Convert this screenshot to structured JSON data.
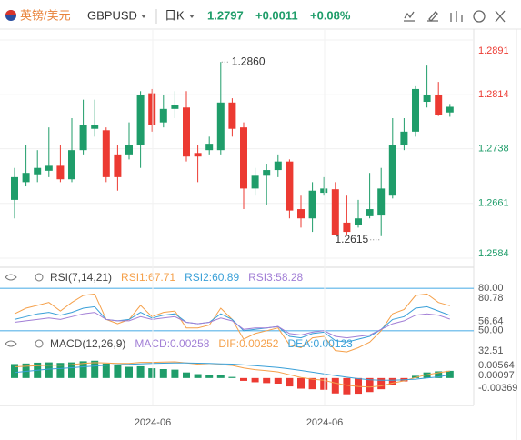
{
  "header": {
    "pair": "英镑/美元",
    "symbol": "GBPUSD",
    "period": "日K",
    "price": "1.2797",
    "change": "+0.0011",
    "change_pct": "+0.08%"
  },
  "x_labels": [
    "2024-06",
    "2024-06"
  ],
  "chart_data": [
    {
      "type": "candlestick",
      "up_color": "#1f9d6a",
      "down_color": "#ec3a32",
      "ylim": [
        1.2584,
        1.2891
      ],
      "yticks": [
        1.2891,
        1.2814,
        1.2738,
        1.2661,
        1.2584
      ],
      "grid": true,
      "annotations": [
        {
          "text": "1.2860",
          "at": "high"
        },
        {
          "text": "1.2615",
          "at": "low"
        }
      ],
      "open": [
        1.2666,
        1.2691,
        1.2702,
        1.2707,
        1.2714,
        1.2695,
        1.2736,
        1.2766,
        1.2764,
        1.273,
        1.273,
        1.2743,
        1.2816,
        1.2775,
        1.2794,
        1.2796,
        1.2732,
        1.2736,
        1.2736,
        1.2803,
        1.2768,
        1.2682,
        1.27,
        1.2708,
        1.272,
        1.2653,
        1.264,
        1.2676,
        1.2681,
        1.2634,
        1.2631,
        1.2643,
        1.2644,
        1.2672,
        1.2743,
        1.2762,
        1.2804,
        1.2814,
        1.2789
      ],
      "high": [
        1.2711,
        1.2743,
        1.2736,
        1.2768,
        1.2743,
        1.2781,
        1.2807,
        1.2807,
        1.2768,
        1.2743,
        1.2775,
        1.2819,
        1.2822,
        1.2813,
        1.2819,
        1.2819,
        1.2743,
        1.2755,
        1.286,
        1.2809,
        1.2775,
        1.2711,
        1.2717,
        1.273,
        1.2723,
        1.2672,
        1.2691,
        1.2698,
        1.2691,
        1.2672,
        1.2666,
        1.2704,
        1.2711,
        1.2781,
        1.2781,
        1.2826,
        1.2855,
        1.2832,
        1.2801
      ],
      "low": [
        1.264,
        1.2685,
        1.2691,
        1.2698,
        1.2691,
        1.2691,
        1.273,
        1.2755,
        1.2691,
        1.2679,
        1.2723,
        1.2711,
        1.2762,
        1.2768,
        1.2781,
        1.272,
        1.2691,
        1.273,
        1.273,
        1.2755,
        1.2653,
        1.2672,
        1.2659,
        1.2698,
        1.264,
        1.2627,
        1.2621,
        1.2672,
        1.2616,
        1.2617,
        1.2627,
        1.264,
        1.2615,
        1.2668,
        1.2736,
        1.2755,
        1.2796,
        1.2784,
        1.2783
      ],
      "close": [
        1.2698,
        1.2704,
        1.2711,
        1.2714,
        1.2695,
        1.2736,
        1.2771,
        1.2771,
        1.2698,
        1.2698,
        1.2743,
        1.2813,
        1.2772,
        1.2794,
        1.28,
        1.2727,
        1.2727,
        1.2745,
        1.2803,
        1.2766,
        1.2682,
        1.27,
        1.2708,
        1.272,
        1.2651,
        1.264,
        1.2679,
        1.2682,
        1.2617,
        1.2621,
        1.264,
        1.2653,
        1.2682,
        1.2743,
        1.2762,
        1.2822,
        1.2813,
        1.2786,
        1.2797
      ]
    },
    {
      "type": "line",
      "title": "RSI(7,14,21)",
      "ylim": [
        32.51,
        80.78
      ],
      "yticks": [
        80.78,
        56.64,
        32.51
      ],
      "reference_lines": [
        {
          "value": 80,
          "label": "80.00"
        },
        {
          "value": 50,
          "label": "50.00"
        }
      ],
      "reference_color": "#5ab4e8",
      "series": [
        {
          "name": "RSI1:67.71",
          "color": "#f5a04a",
          "values": [
            62,
            66,
            68,
            70,
            64,
            70,
            75,
            76,
            58,
            55,
            58,
            68,
            60,
            63,
            64,
            52,
            52,
            54,
            66,
            58,
            44,
            48,
            50,
            52,
            40,
            38,
            45,
            46,
            36,
            35,
            38,
            42,
            50,
            62,
            65,
            75,
            76,
            70,
            67.71
          ]
        },
        {
          "name": "RSI2:60.89",
          "color": "#3aa0d8",
          "values": [
            58,
            60,
            62,
            63,
            61,
            63,
            66,
            67,
            58,
            57,
            58,
            63,
            59,
            61,
            62,
            56,
            55,
            56,
            62,
            58,
            50,
            51,
            52,
            53,
            46,
            45,
            48,
            49,
            43,
            42,
            44,
            46,
            51,
            58,
            60,
            66,
            67,
            64,
            60.89
          ]
        },
        {
          "name": "RSI3:58.28",
          "color": "#a27fd6",
          "values": [
            56,
            57,
            58,
            59,
            58,
            60,
            62,
            63,
            58,
            57,
            57,
            60,
            58,
            59,
            60,
            56,
            55,
            56,
            59,
            57,
            51,
            52,
            52,
            53,
            48,
            47,
            49,
            50,
            46,
            45,
            46,
            47,
            51,
            55,
            57,
            61,
            62,
            61,
            58.28
          ]
        }
      ]
    },
    {
      "type": "macd",
      "title": "MACD(12,26,9)",
      "ylim": [
        -0.0072,
        0.0084
      ],
      "yticks": [
        0.00564,
        0.00097,
        -0.00369
      ],
      "series": [
        {
          "name": "MACD:0.00258",
          "kind": "bar",
          "color": "#a27fd6",
          "up_color": "#1f9d6a",
          "down_color": "#ec3a32",
          "values": [
            0.005,
            0.0052,
            0.0055,
            0.0056,
            0.0054,
            0.0056,
            0.006,
            0.0062,
            0.0052,
            0.0045,
            0.004,
            0.0042,
            0.0035,
            0.0032,
            0.003,
            0.002,
            0.0014,
            0.001,
            0.0012,
            0.0004,
            -0.001,
            -0.0015,
            -0.0018,
            -0.002,
            -0.003,
            -0.0038,
            -0.004,
            -0.0042,
            -0.0055,
            -0.0058,
            -0.0056,
            -0.005,
            -0.004,
            -0.0025,
            -0.0012,
            0.0008,
            0.002,
            0.0024,
            0.00258
          ]
        },
        {
          "name": "DIF:0.00252",
          "kind": "line",
          "color": "#f5a04a",
          "values": [
            0.004,
            0.0042,
            0.0044,
            0.0046,
            0.0046,
            0.0048,
            0.0052,
            0.0055,
            0.0054,
            0.0052,
            0.0052,
            0.0056,
            0.0056,
            0.0057,
            0.0058,
            0.0054,
            0.005,
            0.0047,
            0.0048,
            0.0045,
            0.0036,
            0.003,
            0.0026,
            0.0022,
            0.0012,
            0.0002,
            -0.0004,
            -0.0008,
            -0.0018,
            -0.0026,
            -0.003,
            -0.0032,
            -0.0028,
            -0.0018,
            -0.001,
            0.0002,
            0.0012,
            0.0019,
            0.00252
          ]
        },
        {
          "name": "DEA:0.00123",
          "kind": "line",
          "color": "#3aa0d8",
          "values": [
            0.002,
            0.0024,
            0.0028,
            0.0032,
            0.0034,
            0.0037,
            0.004,
            0.0043,
            0.0046,
            0.0048,
            0.0049,
            0.0051,
            0.0052,
            0.0053,
            0.0054,
            0.0054,
            0.0053,
            0.0052,
            0.0051,
            0.005,
            0.0047,
            0.0044,
            0.0041,
            0.0038,
            0.0033,
            0.0027,
            0.0021,
            0.0015,
            0.0009,
            0.0003,
            -0.0002,
            -0.0006,
            -0.0008,
            -0.0008,
            -0.0006,
            -0.0004,
            0.0,
            0.0004,
            0.00123
          ]
        }
      ]
    }
  ]
}
